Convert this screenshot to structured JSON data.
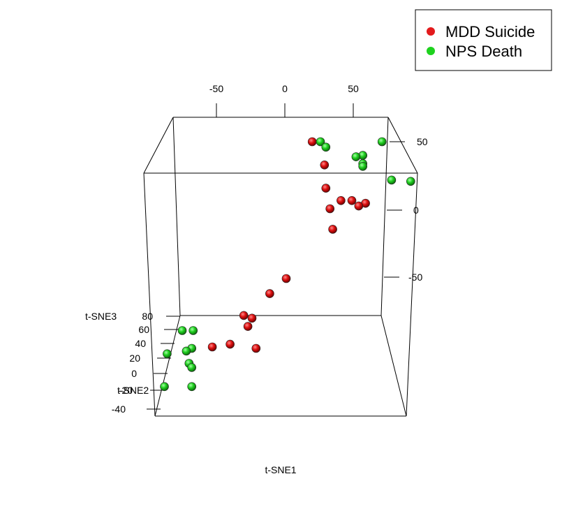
{
  "chart_data": {
    "type": "scatter",
    "title": "",
    "xlabel": "t-SNE1",
    "ylabel": "t-SNE2",
    "zlabel": "t-SNE3",
    "x_ticks": [
      "-50",
      "0",
      "50"
    ],
    "right_ticks": [
      "50",
      "0",
      "-50"
    ],
    "z_ticks": [
      "80",
      "60",
      "40",
      "20",
      "0",
      "-20",
      "-40"
    ],
    "legend_position": "top-right",
    "series": [
      {
        "name": "MDD Suicide",
        "color": "#e31a1c",
        "points": [
          {
            "x": 20,
            "y": 50
          },
          {
            "x": 29,
            "y": 33
          },
          {
            "x": 30,
            "y": 16
          },
          {
            "x": 41,
            "y": 7
          },
          {
            "x": 49,
            "y": 7
          },
          {
            "x": 59,
            "y": 5
          },
          {
            "x": 54,
            "y": 3
          },
          {
            "x": 33,
            "y": 1
          },
          {
            "x": 35,
            "y": -14
          },
          {
            "x": 1,
            "y": -50
          },
          {
            "x": -11,
            "y": -61
          },
          {
            "x": -30,
            "y": -77
          },
          {
            "x": -24,
            "y": -79
          },
          {
            "x": -27,
            "y": -85
          },
          {
            "x": -40,
            "y": -98
          },
          {
            "x": -53,
            "y": -100
          },
          {
            "x": -21,
            "y": -101
          }
        ]
      },
      {
        "name": "NPS Death",
        "color": "#1ed21e",
        "points": [
          {
            "x": 26,
            "y": 50
          },
          {
            "x": 30,
            "y": 46
          },
          {
            "x": 71,
            "y": 50
          },
          {
            "x": 57,
            "y": 40
          },
          {
            "x": 52,
            "y": 39
          },
          {
            "x": 57,
            "y": 34
          },
          {
            "x": 57,
            "y": 32
          },
          {
            "x": 78,
            "y": 22
          },
          {
            "x": 92,
            "y": 21
          },
          {
            "x": -75,
            "y": -88
          },
          {
            "x": -67,
            "y": -88
          },
          {
            "x": -68,
            "y": -101
          },
          {
            "x": -72,
            "y": -103
          },
          {
            "x": -86,
            "y": -105
          },
          {
            "x": -70,
            "y": -112
          },
          {
            "x": -68,
            "y": -115
          },
          {
            "x": -88,
            "y": -129
          },
          {
            "x": -68,
            "y": -129
          }
        ]
      }
    ]
  }
}
